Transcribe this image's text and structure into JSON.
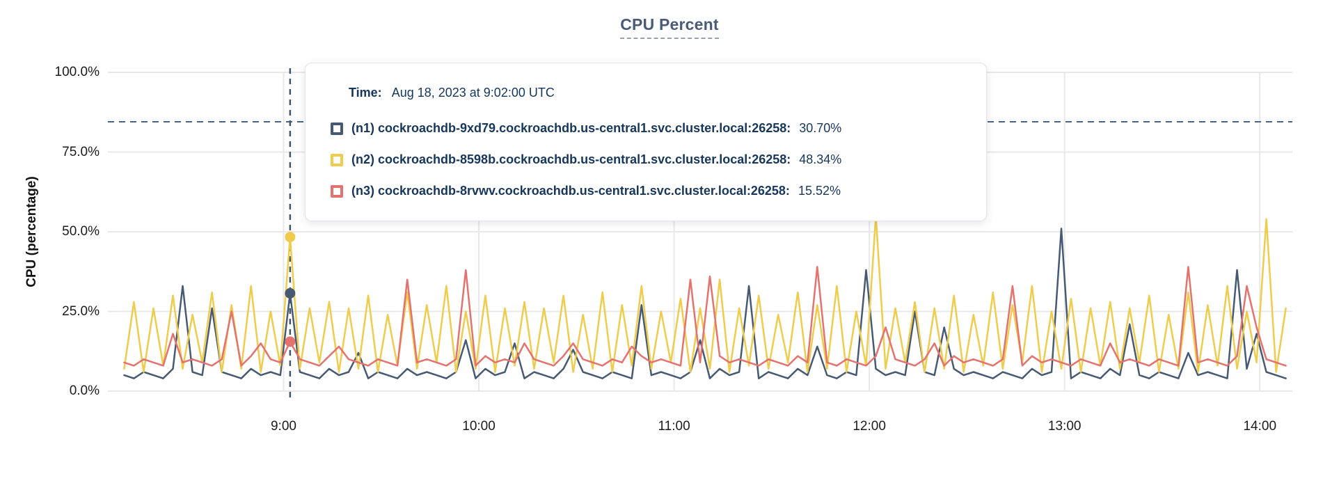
{
  "title": "CPU Percent",
  "y_axis_label": "CPU (percentage)",
  "tooltip": {
    "time_label": "Time:",
    "time_value": "Aug 18, 2023 at 9:02:00 UTC",
    "rows": [
      {
        "label": "(n1) cockroachdb-9xd79.cockroachdb.us-central1.svc.cluster.local:26258:",
        "value": "30.70%",
        "color": "#475a74"
      },
      {
        "label": "(n2) cockroachdb-8598b.cockroachdb.us-central1.svc.cluster.local:26258:",
        "value": "48.34%",
        "color": "#f0cc4d"
      },
      {
        "label": "(n3) cockroachdb-8rvwv.cockroachdb.us-central1.svc.cluster.local:26258:",
        "value": "15.52%",
        "color": "#e4726e"
      }
    ]
  },
  "colors": {
    "title": "#4a5a78",
    "grid": "#e8e8e8",
    "reference_line": "#4a6580",
    "hover_line": "#3f576e",
    "tooltip_text": "#16365c"
  },
  "chart_data": {
    "type": "line",
    "title": "CPU Percent",
    "xlabel": "",
    "ylabel": "CPU (percentage)",
    "ylim": [
      0,
      100
    ],
    "grid": true,
    "legend_position": "tooltip",
    "y_tick_values": [
      100,
      75,
      50,
      25,
      0
    ],
    "y_tick_labels": [
      "100.0%",
      "75.0%",
      "50.0%",
      "25.0%",
      "0.0%"
    ],
    "x_tick_minutes": [
      540,
      600,
      660,
      720,
      780,
      840
    ],
    "x_tick_labels": [
      "9:00",
      "10:00",
      "11:00",
      "12:00",
      "13:00",
      "14:00"
    ],
    "x_domain_minutes": [
      486,
      850
    ],
    "x_start_minutes": 491,
    "x_step_minutes": 3,
    "reference_line_percent": 84.5,
    "hover": {
      "time_minutes": 542,
      "time_text": "Aug 18, 2023 at 9:02:00 UTC",
      "values": [
        30.7,
        48.34,
        15.52
      ]
    },
    "series": [
      {
        "name": "(n1) cockroachdb-9xd79.cockroachdb.us-central1.svc.cluster.local:26258",
        "color": "#475a74",
        "hover_value": 30.7,
        "values": [
          5,
          4,
          6,
          5,
          4,
          7,
          33,
          6,
          5,
          26,
          6,
          5,
          4,
          7,
          5,
          6,
          5,
          30.7,
          6,
          5,
          4,
          7,
          5,
          6,
          12,
          4,
          6,
          5,
          4,
          7,
          5,
          6,
          5,
          4,
          6,
          16,
          4,
          7,
          5,
          6,
          15,
          4,
          6,
          5,
          4,
          7,
          13,
          6,
          5,
          4,
          6,
          5,
          4,
          27,
          5,
          6,
          5,
          4,
          6,
          16,
          4,
          7,
          5,
          6,
          33,
          4,
          6,
          5,
          4,
          7,
          5,
          14,
          5,
          4,
          6,
          5,
          38,
          7,
          5,
          6,
          5,
          25,
          6,
          5,
          20,
          7,
          5,
          6,
          5,
          4,
          6,
          5,
          4,
          7,
          5,
          6,
          51,
          4,
          6,
          5,
          4,
          7,
          5,
          21,
          5,
          4,
          6,
          5,
          4,
          12,
          5,
          6,
          5,
          4,
          38,
          7,
          18,
          6,
          5,
          4
        ]
      },
      {
        "name": "(n2) cockroachdb-8598b.cockroachdb.us-central1.svc.cluster.local:26258",
        "color": "#f0cc4d",
        "hover_value": 48.34,
        "values": [
          7,
          28,
          6,
          26,
          8,
          30,
          7,
          24,
          9,
          31,
          6,
          27,
          7,
          33,
          6,
          25,
          8,
          48.34,
          7,
          26,
          9,
          28,
          6,
          26,
          7,
          30,
          6,
          24,
          8,
          31,
          7,
          27,
          9,
          33,
          6,
          25,
          7,
          30,
          6,
          26,
          8,
          28,
          7,
          26,
          9,
          30,
          6,
          24,
          7,
          31,
          6,
          27,
          8,
          33,
          7,
          25,
          9,
          29,
          6,
          26,
          7,
          35,
          6,
          26,
          8,
          30,
          7,
          24,
          9,
          31,
          6,
          27,
          7,
          33,
          6,
          25,
          8,
          55,
          7,
          26,
          9,
          28,
          6,
          26,
          7,
          30,
          6,
          24,
          8,
          31,
          7,
          27,
          9,
          33,
          6,
          25,
          7,
          29,
          6,
          26,
          8,
          28,
          7,
          26,
          9,
          30,
          6,
          24,
          7,
          31,
          6,
          27,
          8,
          33,
          7,
          25,
          9,
          54,
          6,
          26
        ]
      },
      {
        "name": "(n3) cockroachdb-8rvwv.cockroachdb.us-central1.svc.cluster.local:26258",
        "color": "#e4726e",
        "hover_value": 15.52,
        "values": [
          9,
          8,
          10,
          9,
          8,
          18,
          9,
          10,
          9,
          8,
          10,
          25,
          8,
          11,
          15,
          10,
          9,
          15.52,
          10,
          9,
          8,
          11,
          14,
          10,
          9,
          8,
          10,
          9,
          8,
          35,
          9,
          10,
          9,
          8,
          10,
          38,
          8,
          11,
          9,
          10,
          9,
          15,
          10,
          9,
          8,
          11,
          15,
          10,
          9,
          8,
          10,
          9,
          14,
          11,
          9,
          10,
          9,
          8,
          35,
          9,
          36,
          11,
          9,
          10,
          9,
          8,
          10,
          9,
          8,
          11,
          9,
          39,
          9,
          8,
          10,
          9,
          8,
          11,
          20,
          10,
          9,
          8,
          10,
          15,
          8,
          11,
          9,
          10,
          9,
          8,
          10,
          33,
          8,
          11,
          9,
          10,
          9,
          8,
          10,
          9,
          8,
          15,
          9,
          10,
          9,
          8,
          10,
          9,
          8,
          39,
          9,
          10,
          9,
          8,
          11,
          33,
          20,
          10,
          9,
          8
        ]
      }
    ]
  }
}
